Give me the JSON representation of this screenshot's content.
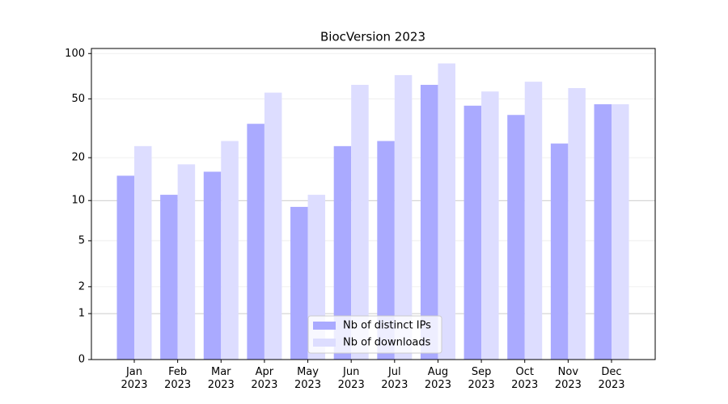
{
  "chart_data": {
    "type": "bar",
    "title": "BiocVersion 2023",
    "scale": "log1p",
    "categories": [
      "Jan 2023",
      "Feb 2023",
      "Mar 2023",
      "Apr 2023",
      "May 2023",
      "Jun 2023",
      "Jul 2023",
      "Aug 2023",
      "Sep 2023",
      "Oct 2023",
      "Nov 2023",
      "Dec 2023"
    ],
    "series": [
      {
        "name": "Nb of distinct IPs",
        "color": "#aaaaff",
        "values": [
          15,
          11,
          16,
          34,
          9,
          24,
          26,
          62,
          45,
          39,
          25,
          46
        ]
      },
      {
        "name": "Nb of downloads",
        "color": "#ddddff",
        "values": [
          24,
          18,
          26,
          55,
          11,
          62,
          72,
          86,
          56,
          65,
          59,
          46
        ]
      }
    ],
    "ylim": [
      0,
      108
    ],
    "yticks": [
      0,
      1,
      2,
      5,
      10,
      20,
      50,
      100
    ],
    "grid": true,
    "grid_major": [
      1,
      10
    ],
    "legend": "lower center"
  }
}
